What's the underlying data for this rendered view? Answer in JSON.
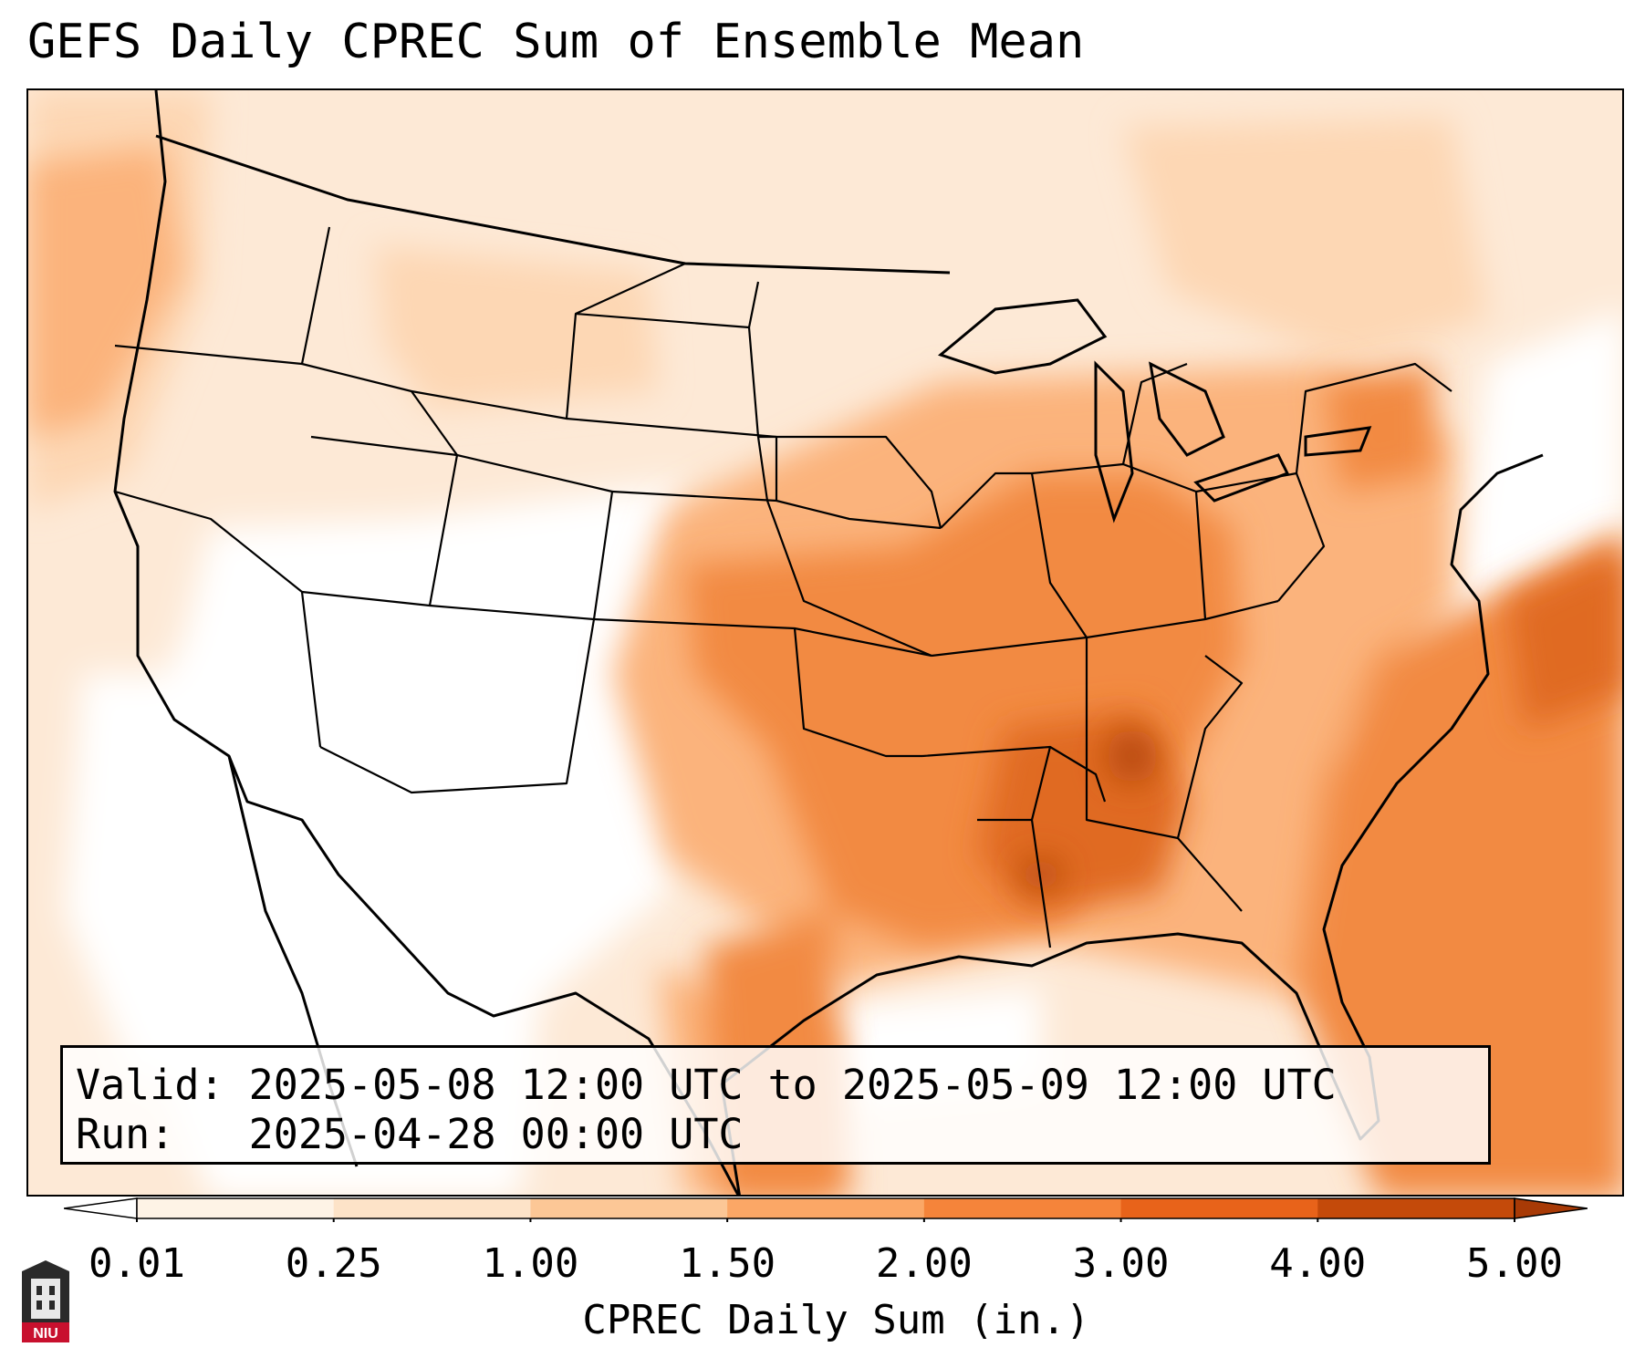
{
  "title": "GEFS Daily CPREC Sum of Ensemble Mean",
  "info": {
    "valid_label": "Valid:",
    "valid_value": "2025-05-08 12:00 UTC to 2025-05-09 12:00 UTC",
    "run_label": "Run:",
    "run_value": "2025-04-28 00:00 UTC"
  },
  "colorbar": {
    "label": "CPREC Daily Sum (in.)",
    "ticks": [
      "0.01",
      "0.25",
      "1.00",
      "1.50",
      "2.00",
      "3.00",
      "4.00",
      "5.00"
    ],
    "colors": [
      "#fef3e6",
      "#fde3c8",
      "#fcc796",
      "#fba766",
      "#f5843a",
      "#e8631a",
      "#c44a0a"
    ],
    "over_color": "#a83a06",
    "under_color": "#ffffff"
  },
  "map": {
    "projection": "Lambert conformal",
    "region": "CONUS",
    "palette": {
      "background": "#fde9d6",
      "dry": "#ffffff",
      "light": "#fdd7b4",
      "moderate": "#fbb37c",
      "heavy": "#f28a43",
      "very_heavy": "#e06a22",
      "extreme": "#b8480e"
    }
  },
  "logo": {
    "label": "NIU",
    "color": "#c8102e"
  }
}
